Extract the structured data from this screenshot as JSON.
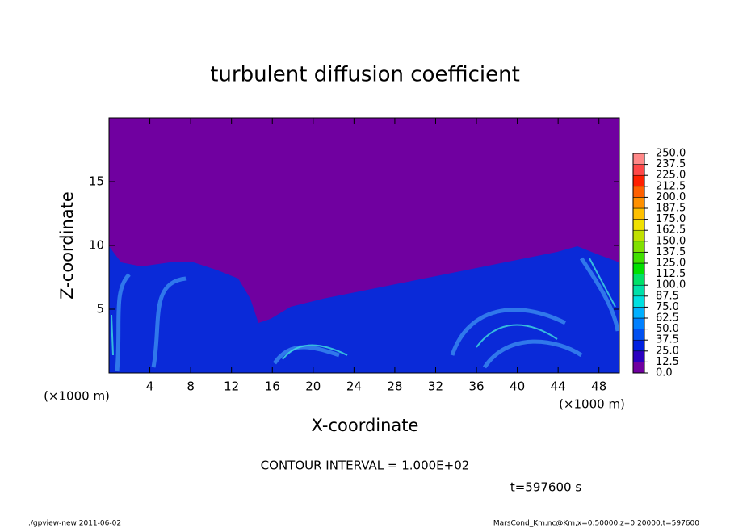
{
  "chart_data": {
    "type": "heatmap",
    "title": "turbulent diffusion coefficient",
    "xlabel": "X-coordinate",
    "ylabel": "Z-coordinate",
    "x_unit": "(×1000 m)",
    "y_unit": "(×1000 m)",
    "xlim": [
      0,
      50
    ],
    "ylim": [
      0,
      20
    ],
    "xticks": [
      4,
      8,
      12,
      16,
      20,
      24,
      28,
      32,
      36,
      40,
      44,
      48
    ],
    "yticks": [
      5,
      10,
      15
    ],
    "contour_note": "CONTOUR INTERVAL = 1.000E+02",
    "time_note": "t=597600 s",
    "footer_left": "./gpview-new  2011-06-02",
    "footer_right": "MarsCond_Km.nc@Km,x=0:50000,z=0:20000,t=597600",
    "colorbar": {
      "levels": [
        {
          "value": 0,
          "label": "0.0"
        },
        {
          "value": 12.5,
          "label": "12.5"
        },
        {
          "value": 25,
          "label": "25.0"
        },
        {
          "value": 37.5,
          "label": "37.5"
        },
        {
          "value": 50,
          "label": "50.0"
        },
        {
          "value": 62.5,
          "label": "62.5"
        },
        {
          "value": 75,
          "label": "75.0"
        },
        {
          "value": 87.5,
          "label": "87.5"
        },
        {
          "value": 100,
          "label": "100.0"
        },
        {
          "value": 112.5,
          "label": "112.5"
        },
        {
          "value": 125,
          "label": "125.0"
        },
        {
          "value": 137.5,
          "label": "137.5"
        },
        {
          "value": 150,
          "label": "150.0"
        },
        {
          "value": 162.5,
          "label": "162.5"
        },
        {
          "value": 175,
          "label": "175.0"
        },
        {
          "value": 187.5,
          "label": "187.5"
        },
        {
          "value": 200,
          "label": "200.0"
        },
        {
          "value": 212.5,
          "label": "212.5"
        },
        {
          "value": 225,
          "label": "225.0"
        },
        {
          "value": 237.5,
          "label": "237.5"
        },
        {
          "value": 250,
          "label": "250.0"
        }
      ],
      "colors": [
        "#7000a0",
        "#2a00c0",
        "#0020e0",
        "#0050f0",
        "#0080ff",
        "#00b0ff",
        "#00e0e0",
        "#00e0a8",
        "#00e068",
        "#00e000",
        "#40e000",
        "#80e000",
        "#c0e000",
        "#f0e000",
        "#ffc000",
        "#ff9000",
        "#ff6000",
        "#ff2000",
        "#ff4848",
        "#ff8888"
      ]
    }
  }
}
